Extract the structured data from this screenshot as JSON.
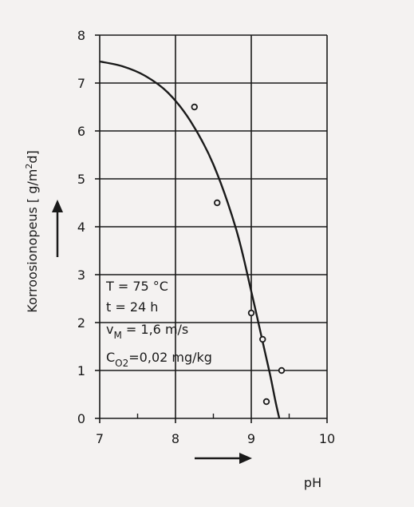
{
  "chart_data": {
    "type": "scatter",
    "xlabel": "pH",
    "ylabel": "Korroosionopeus [ g/m²d]",
    "xlim": [
      7,
      10
    ],
    "ylim": [
      0,
      8
    ],
    "grid": true,
    "x_ticks": [
      "7",
      "8",
      "9",
      "10"
    ],
    "y_ticks": [
      "0",
      "1",
      "2",
      "3",
      "4",
      "5",
      "6",
      "7",
      "8"
    ],
    "points": [
      {
        "x": 8.25,
        "y": 6.5
      },
      {
        "x": 8.55,
        "y": 4.5
      },
      {
        "x": 9.0,
        "y": 2.2
      },
      {
        "x": 9.15,
        "y": 1.65
      },
      {
        "x": 9.2,
        "y": 0.35
      },
      {
        "x": 9.4,
        "y": 1.0
      }
    ],
    "curve": [
      {
        "x": 7.0,
        "y": 7.45
      },
      {
        "x": 7.3,
        "y": 7.35
      },
      {
        "x": 7.6,
        "y": 7.15
      },
      {
        "x": 7.9,
        "y": 6.8
      },
      {
        "x": 8.2,
        "y": 6.2
      },
      {
        "x": 8.5,
        "y": 5.3
      },
      {
        "x": 8.8,
        "y": 3.95
      },
      {
        "x": 9.0,
        "y": 2.65
      },
      {
        "x": 9.15,
        "y": 1.6
      },
      {
        "x": 9.25,
        "y": 0.9
      },
      {
        "x": 9.32,
        "y": 0.35
      },
      {
        "x": 9.37,
        "y": 0.0
      }
    ],
    "annotations": [
      "T = 75 °C",
      "t = 24 h",
      "v_M = 1,6 m/s",
      "C_O2 = 0,02 mg/kg"
    ]
  },
  "annotation": {
    "T": "T = 75 °C",
    "t": "t = 24 h",
    "v_main": "v",
    "v_sub": "M",
    "v_rest": " = 1,6  m/s",
    "c_main": "C",
    "c_sub": "O2",
    "c_rest": "=0,02 mg/kg"
  },
  "axis": {
    "xlabel": "pH",
    "ylabel_main": "Korroosionopeus [ g/m",
    "ylabel_sup": "2",
    "ylabel_end": "d]"
  },
  "colors": {
    "ink": "#1a1a1a",
    "background": "#f4f2f1"
  }
}
